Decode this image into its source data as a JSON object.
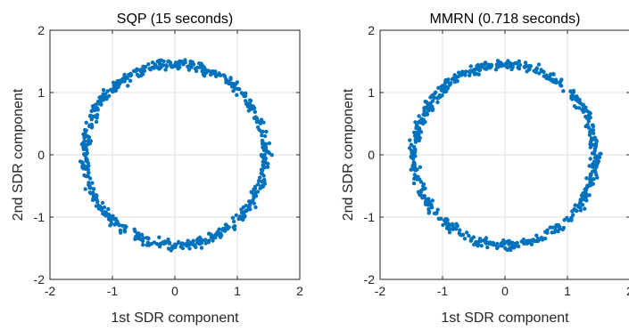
{
  "chart_data": [
    {
      "type": "scatter",
      "title": "SQP (15 seconds)",
      "xlabel": "1st SDR component",
      "ylabel": "2nd SDR component",
      "xlim": [
        -2,
        2
      ],
      "ylim": [
        -2,
        2
      ],
      "xticks": [
        "-2",
        "-1",
        "0",
        "1",
        "2"
      ],
      "yticks": [
        "-2",
        "-1",
        "0",
        "1",
        "2"
      ],
      "grid": true,
      "color": "#0072BD",
      "pattern": "ring of points around origin, radius about 1.45, thickness about 0.12",
      "n_points": 600,
      "radius": 1.45
    },
    {
      "type": "scatter",
      "title": "MMRN (0.718 seconds)",
      "xlabel": "1st SDR component",
      "ylabel": "2nd SDR component",
      "xlim": [
        -2,
        2
      ],
      "ylim": [
        -2,
        2
      ],
      "xticks": [
        "-2",
        "-1",
        "0",
        "1",
        "2"
      ],
      "yticks": [
        "-2",
        "-1",
        "0",
        "1",
        "2"
      ],
      "grid": true,
      "color": "#0072BD",
      "pattern": "ring of points around origin, radius about 1.45, thickness about 0.12",
      "n_points": 600,
      "radius": 1.45
    }
  ]
}
